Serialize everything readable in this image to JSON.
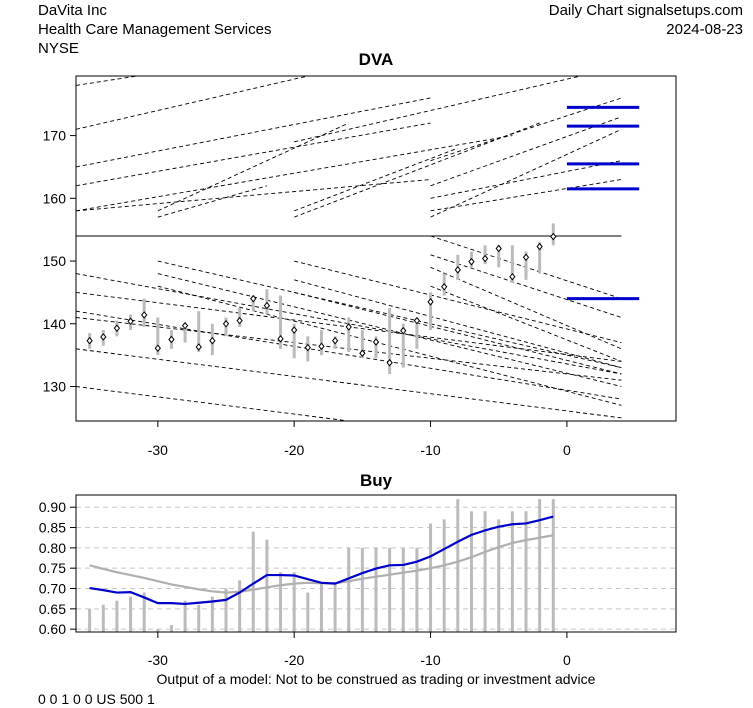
{
  "header": {
    "company": "DaVita Inc",
    "industry": "Health Care Management Services",
    "exchange": "NYSE",
    "source": "Daily Chart signalsetups.com",
    "date": "2024-08-23"
  },
  "footer": {
    "disclaimer": "Output of a model: Not to be construed as trading or investment advice",
    "code": "0 0 1 0 0 US 500 1"
  },
  "colors": {
    "signal": "#0000cc",
    "bar": "#bbbbbb",
    "avg": "#b0b0b0",
    "grid": "#c8c8c8"
  },
  "chart_data": [
    {
      "type": "ohlc",
      "title": "DVA",
      "xlim": [
        -36,
        8
      ],
      "ylim": [
        124.5,
        179.5
      ],
      "x_ticks": [
        -30,
        -20,
        -10,
        0
      ],
      "y_ticks": [
        130,
        140,
        150,
        160,
        170
      ],
      "x": [
        -35,
        -34,
        -33,
        -32,
        -31,
        -30,
        -29,
        -28,
        -27,
        -26,
        -25,
        -24,
        -23,
        -22,
        -21,
        -20,
        -19,
        -18,
        -17,
        -16,
        -15,
        -14,
        -13,
        -12,
        -11,
        -10,
        -9,
        -8,
        -7,
        -6,
        -5,
        -4,
        -3,
        -2,
        -1
      ],
      "high": [
        138.5,
        139.0,
        140.5,
        141.5,
        144.0,
        141.0,
        139.0,
        140.0,
        142.0,
        140.0,
        141.0,
        142.5,
        144.5,
        145.5,
        144.5,
        140.0,
        138.0,
        139.0,
        138.0,
        141.0,
        139.0,
        138.0,
        142.5,
        140.0,
        141.0,
        145.0,
        148.0,
        151.0,
        151.5,
        152.5,
        152.5,
        152.5,
        151.5,
        153.0,
        156.0
      ],
      "low": [
        136.0,
        136.5,
        138.0,
        139.0,
        139.5,
        135.0,
        136.0,
        137.0,
        135.5,
        135.0,
        138.0,
        139.5,
        142.0,
        141.5,
        136.0,
        134.5,
        134.0,
        135.0,
        136.0,
        135.5,
        134.5,
        134.5,
        132.0,
        133.0,
        136.0,
        139.0,
        144.5,
        147.0,
        149.0,
        149.5,
        149.0,
        146.5,
        147.0,
        148.0,
        152.5
      ],
      "close": [
        137.3,
        137.9,
        139.3,
        140.4,
        141.4,
        136.1,
        137.5,
        139.7,
        136.3,
        137.3,
        140.0,
        140.5,
        144.0,
        142.9,
        137.6,
        139.0,
        136.2,
        136.4,
        137.3,
        139.5,
        135.3,
        137.1,
        133.8,
        138.9,
        140.5,
        143.5,
        145.9,
        148.6,
        149.9,
        150.4,
        152.0,
        147.5,
        150.6,
        152.3,
        153.9
      ],
      "reference_line": 154.0,
      "levels": [
        174.5,
        171.5,
        165.5,
        161.5,
        144.0
      ],
      "trend_lines": [
        [
          [
            -36,
            178
          ],
          [
            -30,
            180
          ]
        ],
        [
          [
            -36,
            171
          ],
          [
            -18,
            180
          ]
        ],
        [
          [
            -36,
            165
          ],
          [
            -10,
            176
          ]
        ],
        [
          [
            -36,
            162
          ],
          [
            -10,
            172
          ]
        ],
        [
          [
            -36,
            158
          ],
          [
            -4,
            170
          ]
        ],
        [
          [
            -36,
            158
          ],
          [
            -10,
            163
          ]
        ],
        [
          [
            -30,
            158
          ],
          [
            -16,
            172
          ]
        ],
        [
          [
            -30,
            157
          ],
          [
            -22,
            162
          ]
        ],
        [
          [
            -20,
            158
          ],
          [
            -8,
            168
          ]
        ],
        [
          [
            -20,
            157
          ],
          [
            -2,
            172
          ]
        ],
        [
          [
            -10,
            157
          ],
          [
            4,
            171
          ]
        ],
        [
          [
            -10,
            160
          ],
          [
            4,
            166
          ]
        ],
        [
          [
            -10,
            162
          ],
          [
            4,
            173
          ]
        ],
        [
          [
            -10,
            166
          ],
          [
            4,
            176
          ]
        ],
        [
          [
            -10,
            158
          ],
          [
            4,
            163
          ]
        ],
        [
          [
            -20,
            169
          ],
          [
            4,
            181
          ]
        ],
        [
          [
            -36,
            148
          ],
          [
            4,
            132
          ]
        ],
        [
          [
            -36,
            145
          ],
          [
            4,
            134
          ]
        ],
        [
          [
            -36,
            142
          ],
          [
            4,
            128
          ]
        ],
        [
          [
            -36,
            136
          ],
          [
            4,
            125
          ]
        ],
        [
          [
            -36,
            141
          ],
          [
            4,
            131
          ]
        ],
        [
          [
            -30,
            150
          ],
          [
            4,
            133
          ]
        ],
        [
          [
            -30,
            148
          ],
          [
            4,
            130
          ]
        ],
        [
          [
            -30,
            146
          ],
          [
            4,
            127
          ]
        ],
        [
          [
            -20,
            150
          ],
          [
            4,
            137
          ]
        ],
        [
          [
            -20,
            147
          ],
          [
            4,
            133
          ]
        ],
        [
          [
            -20,
            145
          ],
          [
            4,
            132
          ]
        ],
        [
          [
            -10,
            151
          ],
          [
            4,
            141
          ]
        ],
        [
          [
            -10,
            149
          ],
          [
            4,
            136
          ]
        ],
        [
          [
            -10,
            146
          ],
          [
            4,
            134
          ]
        ],
        [
          [
            -10,
            154
          ],
          [
            4,
            144
          ]
        ],
        [
          [
            -36,
            130
          ],
          [
            4,
            119
          ]
        ]
      ]
    },
    {
      "type": "line+bar",
      "title": "Buy",
      "xlim": [
        -36,
        8
      ],
      "ylim": [
        0.593,
        0.93
      ],
      "x_ticks": [
        -30,
        -20,
        -10,
        0
      ],
      "y_ticks": [
        0.6,
        0.65,
        0.7,
        0.75,
        0.8,
        0.85,
        0.9
      ],
      "x": [
        -35,
        -34,
        -33,
        -32,
        -31,
        -30,
        -29,
        -28,
        -27,
        -26,
        -25,
        -24,
        -23,
        -22,
        -21,
        -20,
        -19,
        -18,
        -17,
        -16,
        -15,
        -14,
        -13,
        -12,
        -11,
        -10,
        -9,
        -8,
        -7,
        -6,
        -5,
        -4,
        -3,
        -2,
        -1
      ],
      "bars": [
        0.65,
        0.66,
        0.67,
        0.68,
        0.69,
        0.6,
        0.61,
        0.67,
        0.66,
        0.68,
        0.7,
        0.72,
        0.84,
        0.82,
        0.74,
        0.74,
        0.69,
        0.71,
        0.71,
        0.8,
        0.8,
        0.8,
        0.8,
        0.8,
        0.8,
        0.86,
        0.87,
        0.92,
        0.89,
        0.89,
        0.87,
        0.89,
        0.89,
        0.92,
        0.92
      ],
      "series": [
        {
          "name": "signal",
          "values": [
            0.701,
            0.696,
            0.69,
            0.691,
            0.678,
            0.664,
            0.664,
            0.662,
            0.665,
            0.668,
            0.672,
            0.69,
            0.712,
            0.733,
            0.733,
            0.732,
            0.723,
            0.714,
            0.712,
            0.725,
            0.738,
            0.749,
            0.757,
            0.758,
            0.766,
            0.779,
            0.797,
            0.815,
            0.832,
            0.843,
            0.852,
            0.858,
            0.86,
            0.868,
            0.877
          ]
        },
        {
          "name": "average",
          "values": [
            0.757,
            0.748,
            0.74,
            0.733,
            0.726,
            0.718,
            0.71,
            0.704,
            0.698,
            0.693,
            0.69,
            0.692,
            0.697,
            0.703,
            0.708,
            0.712,
            0.714,
            0.713,
            0.713,
            0.718,
            0.724,
            0.729,
            0.734,
            0.739,
            0.744,
            0.75,
            0.757,
            0.766,
            0.777,
            0.79,
            0.802,
            0.812,
            0.819,
            0.825,
            0.831
          ]
        }
      ]
    }
  ]
}
